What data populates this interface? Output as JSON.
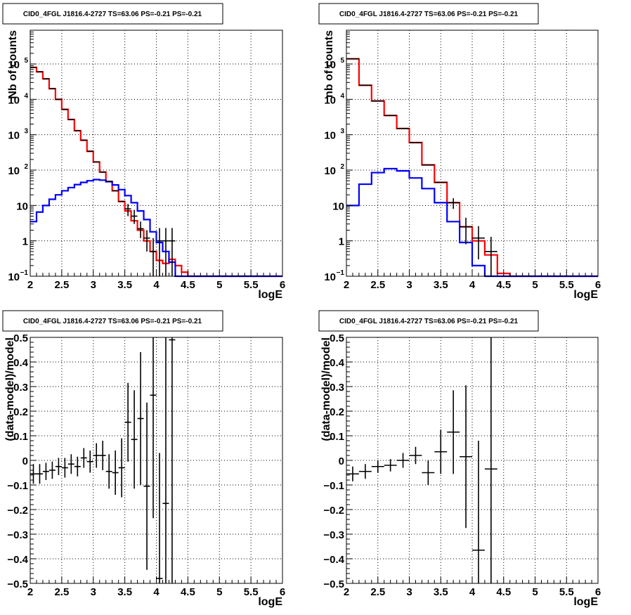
{
  "colors": {
    "data": "#000000",
    "total_model": "#ff0000",
    "source_model": "#0000ff",
    "grid": "#000000"
  },
  "chart_data": [
    {
      "type": "line",
      "title": "CID0_4FGL J1816.4-2727 TS=63.06 PS=-0.21 PS=-0.21",
      "xlabel": "logE",
      "ylabel": "Nb of counts",
      "xlim": [
        2,
        6
      ],
      "ylim": [
        0.1,
        900000
      ],
      "log_y": true,
      "grid": true,
      "x_ticks": [
        "2",
        "2.5",
        "3",
        "3.5",
        "4",
        "4.5",
        "5",
        "5.5",
        "6"
      ],
      "y_ticks": [
        {
          "base": "10",
          "exp": "−1",
          "value": 0.1
        },
        {
          "base": "1",
          "exp": "",
          "value": 1
        },
        {
          "base": "10",
          "exp": "",
          "value": 10
        },
        {
          "base": "10",
          "exp": "2",
          "value": 100
        },
        {
          "base": "10",
          "exp": "3",
          "value": 1000
        },
        {
          "base": "10",
          "exp": "4",
          "value": 10000
        },
        {
          "base": "10",
          "exp": "5",
          "value": 100000
        }
      ],
      "bin_edges": [
        2.0,
        2.1,
        2.2,
        2.3,
        2.4,
        2.5,
        2.6,
        2.7,
        2.8,
        2.9,
        3.0,
        3.1,
        3.2,
        3.3,
        3.4,
        3.5,
        3.6,
        3.7,
        3.8,
        3.9,
        4.0,
        4.1,
        4.2,
        4.3,
        4.4,
        4.5,
        4.6,
        4.7,
        4.8,
        4.9,
        5.0,
        5.1,
        5.2,
        5.3,
        5.4,
        5.5,
        5.6,
        5.7,
        5.8,
        5.9,
        6.0
      ],
      "series": [
        {
          "role": "total_model",
          "values": [
            80000,
            60000,
            38000,
            20000,
            10000,
            5200,
            2700,
            1300,
            700,
            340,
            170,
            88,
            48,
            26,
            13,
            7,
            3.7,
            2.0,
            1.0,
            0.5,
            0.28,
            0.23,
            0.3,
            0.2,
            0.13,
            0.1,
            0.1,
            0.1,
            0.1,
            0.1,
            0.1,
            0.1,
            0.1,
            0.1,
            0.1,
            0.1,
            0.1,
            0.1,
            0.1,
            0.1
          ]
        },
        {
          "role": "source_model",
          "values": [
            3.5,
            6.5,
            10,
            15,
            20,
            26,
            32,
            39,
            45,
            50,
            54,
            52,
            47,
            38,
            28,
            19,
            12,
            7,
            4,
            1.8,
            0.9,
            0.5,
            0.25,
            0.1,
            0.1,
            0.1,
            0.1,
            0.1,
            0.1,
            0.1,
            0.1,
            0.1,
            0.1,
            0.1,
            0.1,
            0.1,
            0.1,
            0.1,
            0.1,
            0.1
          ]
        },
        {
          "role": "data",
          "points": [
            {
              "x": 2.05,
              "y": 80000
            },
            {
              "x": 2.15,
              "y": 60000
            },
            {
              "x": 2.25,
              "y": 38000
            },
            {
              "x": 2.35,
              "y": 20000
            },
            {
              "x": 2.45,
              "y": 10000
            },
            {
              "x": 2.55,
              "y": 5200
            },
            {
              "x": 2.65,
              "y": 2700
            },
            {
              "x": 2.75,
              "y": 1300
            },
            {
              "x": 2.85,
              "y": 700
            },
            {
              "x": 2.95,
              "y": 340
            },
            {
              "x": 3.05,
              "y": 170
            },
            {
              "x": 3.15,
              "y": 88
            },
            {
              "x": 3.25,
              "y": 48
            },
            {
              "x": 3.35,
              "y": 26
            },
            {
              "x": 3.45,
              "y": 13
            },
            {
              "x": 3.55,
              "y": 8,
              "lo": 5,
              "hi": 11
            },
            {
              "x": 3.65,
              "y": 5,
              "lo": 3,
              "hi": 7.5
            },
            {
              "x": 3.75,
              "y": 2.2,
              "lo": 1.2,
              "hi": 3.5
            },
            {
              "x": 3.85,
              "y": 1.2,
              "lo": 0.5,
              "hi": 2
            },
            {
              "x": 3.95,
              "y": 0.5,
              "lo": 0.1,
              "hi": 1.2
            },
            {
              "x": 4.05,
              "y": 1,
              "lo": 0.1,
              "hi": 2.3
            },
            {
              "x": 4.15,
              "y": 1,
              "lo": 0.1,
              "hi": 2.3
            },
            {
              "x": 4.25,
              "y": 1,
              "lo": 0.1,
              "hi": 2.3
            }
          ]
        }
      ]
    },
    {
      "type": "line",
      "title": "CID0_4FGL J1816.4-2727 TS=63.06 PS=-0.21 PS=-0.21",
      "xlabel": "logE",
      "ylabel": "nb of counts",
      "xlim": [
        2,
        6
      ],
      "ylim": [
        0.1,
        900000
      ],
      "log_y": true,
      "grid": true,
      "x_ticks": [
        "2",
        "2.5",
        "3",
        "3.5",
        "4",
        "4.5",
        "5",
        "5.5",
        "6"
      ],
      "y_ticks": [
        {
          "base": "10",
          "exp": "−1",
          "value": 0.1
        },
        {
          "base": "1",
          "exp": "",
          "value": 1
        },
        {
          "base": "10",
          "exp": "",
          "value": 10
        },
        {
          "base": "10",
          "exp": "2",
          "value": 100
        },
        {
          "base": "10",
          "exp": "3",
          "value": 1000
        },
        {
          "base": "10",
          "exp": "4",
          "value": 10000
        },
        {
          "base": "10",
          "exp": "5",
          "value": 100000
        }
      ],
      "bin_edges": [
        2.0,
        2.2,
        2.4,
        2.6,
        2.8,
        3.0,
        3.2,
        3.4,
        3.6,
        3.8,
        4.0,
        4.2,
        4.4,
        4.6,
        4.8,
        5.0,
        5.2,
        5.4,
        5.6,
        5.8,
        6.0
      ],
      "series": [
        {
          "role": "total_model",
          "values": [
            140000,
            25000,
            9000,
            3500,
            1500,
            600,
            140,
            45,
            12,
            2.5,
            1,
            0.4,
            0.12,
            0.1,
            0.1,
            0.1,
            0.1,
            0.1,
            0.1,
            0.1
          ]
        },
        {
          "role": "source_model",
          "values": [
            10,
            40,
            85,
            110,
            95,
            60,
            30,
            12,
            3.5,
            0.9,
            0.2,
            0.1,
            0.1,
            0.1,
            0.1,
            0.1,
            0.1,
            0.1,
            0.1,
            0.1
          ]
        },
        {
          "role": "data",
          "points": [
            {
              "x": 2.1,
              "y": 140000
            },
            {
              "x": 2.3,
              "y": 25000
            },
            {
              "x": 2.5,
              "y": 9000
            },
            {
              "x": 2.7,
              "y": 3500
            },
            {
              "x": 2.9,
              "y": 1500
            },
            {
              "x": 3.1,
              "y": 600
            },
            {
              "x": 3.3,
              "y": 140
            },
            {
              "x": 3.5,
              "y": 45
            },
            {
              "x": 3.7,
              "y": 12,
              "lo": 8,
              "hi": 16
            },
            {
              "x": 3.9,
              "y": 2.5,
              "lo": 0.8,
              "hi": 4.5
            },
            {
              "x": 4.1,
              "y": 1.2,
              "lo": 0.3,
              "hi": 2.6
            },
            {
              "x": 4.3,
              "y": 0.5,
              "lo": 0.1,
              "hi": 1.3
            }
          ]
        }
      ]
    },
    {
      "type": "scatter",
      "title": "CID0_4FGL J1816.4-2727 TS=63.06 PS=-0.21 PS=-0.21",
      "xlabel": "logE",
      "ylabel": "(data-model)/model",
      "xlim": [
        2,
        6
      ],
      "ylim": [
        -0.5,
        0.5
      ],
      "grid": true,
      "x_ticks": [
        "2",
        "2.5",
        "3",
        "3.5",
        "4",
        "4.5",
        "5",
        "5.5",
        "6"
      ],
      "y_ticks": [
        "−0.5",
        "−0.4",
        "−0.3",
        "−0.2",
        "−0.1",
        "0",
        "0.1",
        "0.2",
        "0.3",
        "0.4",
        "0.5"
      ],
      "points": [
        {
          "x": 2.05,
          "y": -0.055,
          "err": 0.04
        },
        {
          "x": 2.15,
          "y": -0.055,
          "err": 0.04
        },
        {
          "x": 2.25,
          "y": -0.045,
          "err": 0.035
        },
        {
          "x": 2.35,
          "y": -0.04,
          "err": 0.035
        },
        {
          "x": 2.45,
          "y": -0.025,
          "err": 0.035
        },
        {
          "x": 2.55,
          "y": -0.03,
          "err": 0.04
        },
        {
          "x": 2.65,
          "y": -0.015,
          "err": 0.04
        },
        {
          "x": 2.75,
          "y": -0.025,
          "err": 0.04
        },
        {
          "x": 2.85,
          "y": 0.01,
          "err": 0.04
        },
        {
          "x": 2.95,
          "y": -0.005,
          "err": 0.045
        },
        {
          "x": 3.05,
          "y": 0.02,
          "err": 0.05
        },
        {
          "x": 3.15,
          "y": 0.02,
          "err": 0.06
        },
        {
          "x": 3.25,
          "y": -0.045,
          "err": 0.07
        },
        {
          "x": 3.35,
          "y": -0.05,
          "err": 0.09
        },
        {
          "x": 3.45,
          "y": -0.03,
          "err": 0.12
        },
        {
          "x": 3.55,
          "y": 0.155,
          "err": 0.16
        },
        {
          "x": 3.65,
          "y": 0.085,
          "err": 0.2
        },
        {
          "x": 3.75,
          "y": 0.17,
          "err": 0.27
        },
        {
          "x": 3.85,
          "y": -0.105,
          "err": 0.34
        },
        {
          "x": 3.95,
          "y": 0.265,
          "err": 0.5
        },
        {
          "x": 4.05,
          "y": -0.48,
          "err": 0.51
        },
        {
          "x": 4.15,
          "y": -0.175,
          "err": 0.7
        },
        {
          "x": 4.25,
          "y": 0.49,
          "err": 1.0
        }
      ]
    },
    {
      "type": "scatter",
      "title": "CID0_4FGL J1816.4-2727 TS=63.06 PS=-0.21 PS=-0.21",
      "xlabel": "logE",
      "ylabel": "(data-model)/model",
      "xlim": [
        2,
        6
      ],
      "ylim": [
        -0.5,
        0.5
      ],
      "grid": true,
      "x_ticks": [
        "2",
        "2.5",
        "3",
        "3.5",
        "4",
        "4.5",
        "5",
        "5.5",
        "6"
      ],
      "y_ticks": [
        "−0.5",
        "−0.4",
        "−0.3",
        "−0.2",
        "−0.1",
        "0",
        "0.1",
        "0.2",
        "0.3",
        "0.4",
        "0.5"
      ],
      "points": [
        {
          "x": 2.1,
          "y": -0.055,
          "err": 0.03
        },
        {
          "x": 2.3,
          "y": -0.045,
          "err": 0.03
        },
        {
          "x": 2.5,
          "y": -0.025,
          "err": 0.025
        },
        {
          "x": 2.7,
          "y": -0.02,
          "err": 0.025
        },
        {
          "x": 2.9,
          "y": 0.0,
          "err": 0.03
        },
        {
          "x": 3.1,
          "y": 0.02,
          "err": 0.035
        },
        {
          "x": 3.3,
          "y": -0.05,
          "err": 0.05
        },
        {
          "x": 3.5,
          "y": 0.035,
          "err": 0.09
        },
        {
          "x": 3.7,
          "y": 0.115,
          "err": 0.17
        },
        {
          "x": 3.9,
          "y": 0.015,
          "err": 0.29
        },
        {
          "x": 4.1,
          "y": -0.365,
          "err": 0.445
        },
        {
          "x": 4.3,
          "y": -0.035,
          "err": 0.6
        }
      ]
    }
  ]
}
